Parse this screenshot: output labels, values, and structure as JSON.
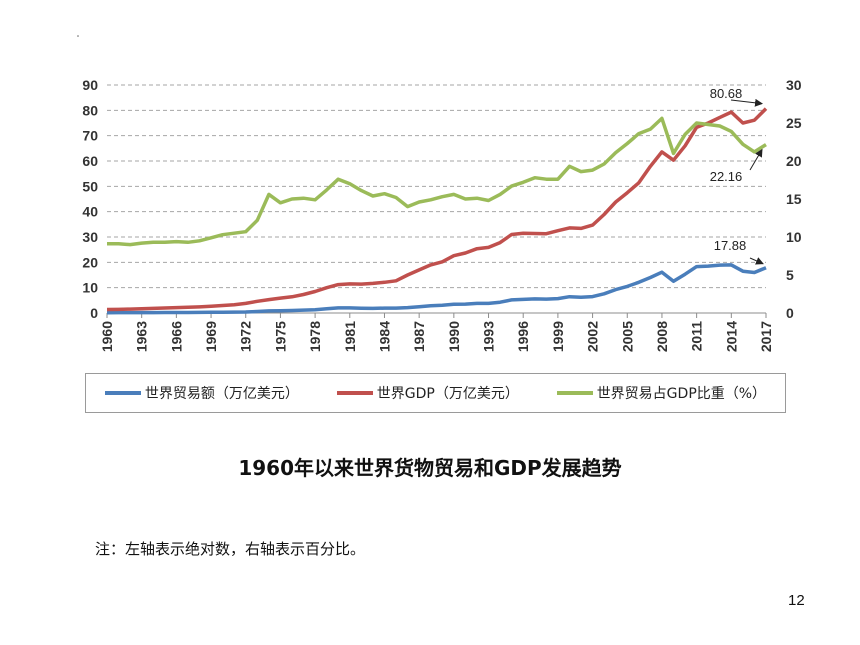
{
  "slide": {
    "title": "1960年以来世界货物贸易和GDP发展趋势",
    "note": "注：左轴表示绝对数，右轴表示百分比。",
    "page_number": "12"
  },
  "chart_data": {
    "type": "line",
    "x": [
      1960,
      1961,
      1962,
      1963,
      1964,
      1965,
      1966,
      1967,
      1968,
      1969,
      1970,
      1971,
      1972,
      1973,
      1974,
      1975,
      1976,
      1977,
      1978,
      1979,
      1980,
      1981,
      1982,
      1983,
      1984,
      1985,
      1986,
      1987,
      1988,
      1989,
      1990,
      1991,
      1992,
      1993,
      1994,
      1995,
      1996,
      1997,
      1998,
      1999,
      2000,
      2001,
      2002,
      2003,
      2004,
      2005,
      2006,
      2007,
      2008,
      2009,
      2010,
      2011,
      2012,
      2013,
      2014,
      2015,
      2016,
      2017
    ],
    "x_tick_labels": [
      "1960",
      "1963",
      "1966",
      "1969",
      "1972",
      "1975",
      "1978",
      "1981",
      "1984",
      "1987",
      "1990",
      "1993",
      "1996",
      "1999",
      "2002",
      "2005",
      "2008",
      "2011",
      "2014",
      "2017"
    ],
    "y_left_range": [
      0,
      90
    ],
    "y_left_ticks": [
      "0",
      "10",
      "20",
      "30",
      "40",
      "50",
      "60",
      "70",
      "80",
      "90"
    ],
    "y_right_range": [
      0,
      30
    ],
    "y_right_ticks": [
      "0",
      "5",
      "10",
      "15",
      "20",
      "25",
      "30"
    ],
    "grid": true,
    "legend_position": "bottom",
    "series": [
      {
        "name": "世界贸易额（万亿美元）",
        "axis": "left",
        "color": "#4a7ebb",
        "values": [
          0.13,
          0.14,
          0.14,
          0.16,
          0.17,
          0.19,
          0.2,
          0.21,
          0.24,
          0.27,
          0.3,
          0.35,
          0.4,
          0.58,
          0.84,
          0.87,
          0.99,
          1.13,
          1.3,
          1.64,
          2.03,
          2.0,
          1.88,
          1.83,
          1.92,
          1.95,
          2.14,
          2.5,
          2.87,
          3.09,
          3.45,
          3.51,
          3.77,
          3.78,
          4.27,
          5.16,
          5.38,
          5.58,
          5.5,
          5.7,
          6.45,
          6.19,
          6.49,
          7.59,
          9.22,
          10.5,
          12.1,
          14.0,
          16.1,
          12.5,
          15.3,
          18.3,
          18.5,
          18.9,
          19.0,
          16.5,
          16.0,
          17.88
        ]
      },
      {
        "name": "世界GDP（万亿美元）",
        "axis": "left",
        "color": "#c0504d",
        "values": [
          1.37,
          1.42,
          1.53,
          1.65,
          1.8,
          1.96,
          2.12,
          2.25,
          2.4,
          2.64,
          2.96,
          3.27,
          3.77,
          4.6,
          5.3,
          5.9,
          6.4,
          7.3,
          8.5,
          10.0,
          11.2,
          11.5,
          11.4,
          11.7,
          12.1,
          12.7,
          15.0,
          17.0,
          19.0,
          20.2,
          22.6,
          23.7,
          25.4,
          25.9,
          27.8,
          31.0,
          31.5,
          31.4,
          31.3,
          32.5,
          33.6,
          33.4,
          34.7,
          38.9,
          43.8,
          47.5,
          51.4,
          57.9,
          63.6,
          60.3,
          66.0,
          73.3,
          75.0,
          77.2,
          79.3,
          75.0,
          76.1,
          80.68
        ]
      },
      {
        "name": "世界贸易占GDP比重（%）",
        "axis": "right",
        "color": "#9bbb59",
        "values": [
          9.1,
          9.1,
          9.0,
          9.2,
          9.3,
          9.3,
          9.4,
          9.3,
          9.5,
          9.9,
          10.3,
          10.5,
          10.7,
          12.2,
          15.6,
          14.5,
          15.0,
          15.1,
          14.9,
          16.2,
          17.6,
          17.0,
          16.1,
          15.4,
          15.7,
          15.2,
          14.0,
          14.6,
          14.9,
          15.3,
          15.6,
          15.0,
          15.1,
          14.8,
          15.6,
          16.7,
          17.2,
          17.8,
          17.6,
          17.6,
          19.3,
          18.6,
          18.8,
          19.6,
          21.1,
          22.3,
          23.6,
          24.2,
          25.6,
          21.0,
          23.5,
          25.0,
          24.8,
          24.6,
          23.9,
          22.2,
          21.2,
          22.16
        ]
      }
    ],
    "annotations": [
      {
        "series": "世界GDP（万亿美元）",
        "year": 2017,
        "label": "80.68"
      },
      {
        "series": "世界贸易占GDP比重（%）",
        "year": 2017,
        "label": "22.16"
      },
      {
        "series": "世界贸易额（万亿美元）",
        "year": 2017,
        "label": "17.88"
      }
    ]
  }
}
